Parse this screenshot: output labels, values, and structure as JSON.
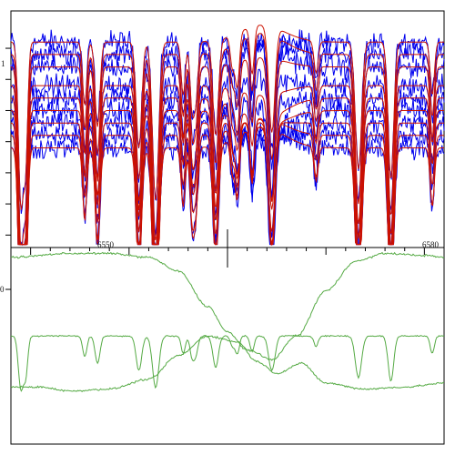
{
  "chart_data": [
    {
      "type": "line",
      "title": "",
      "xlabel": "",
      "ylabel": "",
      "xlim": [
        6538,
        6582
      ],
      "ylim": [
        0.78,
        1.16
      ],
      "grid": false,
      "legend": "none",
      "y_tick_labels": [
        "1"
      ],
      "y_ticks": [
        0.8,
        0.85,
        0.9,
        0.95,
        1.0,
        1.05,
        1.1
      ],
      "series_groups": [
        {
          "name": "",
          "color": "#0000ee",
          "count": 9,
          "noise": 0.022
        },
        {
          "name": "",
          "color": "#cc1100",
          "count": 9,
          "noise": 0.0
        }
      ],
      "base_levels": [
        1.11,
        1.09,
        1.07,
        1.04,
        1.02,
        1.0,
        0.98,
        0.96,
        0.94
      ],
      "absorption_lines": [
        {
          "x": 6539.0,
          "depth": 0.3,
          "width": 0.35
        },
        {
          "x": 6539.5,
          "depth": 0.22,
          "width": 0.3
        },
        {
          "x": 6545.5,
          "depth": 0.12,
          "width": 0.3
        },
        {
          "x": 6546.8,
          "depth": 0.16,
          "width": 0.35
        },
        {
          "x": 6551.0,
          "depth": 0.2,
          "width": 0.4
        },
        {
          "x": 6552.7,
          "depth": 0.3,
          "width": 0.45
        },
        {
          "x": 6555.5,
          "depth": 0.1,
          "width": 0.3
        },
        {
          "x": 6556.4,
          "depth": 0.12,
          "width": 0.3
        },
        {
          "x": 6556.8,
          "depth": 0.1,
          "width": 0.3
        },
        {
          "x": 6558.8,
          "depth": 0.18,
          "width": 0.4
        },
        {
          "x": 6560.5,
          "depth": 0.06,
          "width": 0.3
        },
        {
          "x": 6561.0,
          "depth": 0.1,
          "width": 0.3
        },
        {
          "x": 6562.5,
          "depth": 0.09,
          "width": 0.3
        },
        {
          "x": 6564.5,
          "depth": 0.2,
          "width": 0.45
        },
        {
          "x": 6569.0,
          "depth": 0.06,
          "width": 0.3
        },
        {
          "x": 6573.3,
          "depth": 0.24,
          "width": 0.45
        },
        {
          "x": 6576.6,
          "depth": 0.26,
          "width": 0.4
        },
        {
          "x": 6580.8,
          "depth": 0.1,
          "width": 0.3
        }
      ]
    },
    {
      "type": "line",
      "title": "",
      "xlabel": "",
      "ylabel": "",
      "xlim": [
        6538,
        6582
      ],
      "ylim": [
        0.0,
        1.0
      ],
      "grid": false,
      "legend": "none",
      "x_ticks": [
        6550,
        6580
      ],
      "x_tick_labels": [
        "6550",
        "6580"
      ],
      "y_tick_labels": [
        "0"
      ],
      "series": [
        {
          "name": "",
          "color": "#55aa44",
          "points": [
            [
              6538,
              0.95
            ],
            [
              6544,
              0.97
            ],
            [
              6548,
              0.97
            ],
            [
              6552,
              0.95
            ],
            [
              6555,
              0.88
            ],
            [
              6558,
              0.7
            ],
            [
              6560,
              0.57
            ],
            [
              6562,
              0.48
            ],
            [
              6564.5,
              0.43
            ],
            [
              6567,
              0.55
            ],
            [
              6570,
              0.78
            ],
            [
              6573,
              0.93
            ],
            [
              6576,
              0.97
            ],
            [
              6580,
              0.96
            ],
            [
              6582,
              0.95
            ]
          ]
        },
        {
          "name": "",
          "color": "#55aa44",
          "points": [
            [
              6538,
              0.29
            ],
            [
              6541,
              0.29
            ],
            [
              6544,
              0.27
            ],
            [
              6548,
              0.28
            ],
            [
              6552,
              0.33
            ],
            [
              6555,
              0.45
            ],
            [
              6558,
              0.55
            ],
            [
              6561,
              0.52
            ],
            [
              6563,
              0.42
            ],
            [
              6565,
              0.36
            ],
            [
              6567.5,
              0.41
            ],
            [
              6570,
              0.31
            ],
            [
              6574,
              0.28
            ],
            [
              6578,
              0.29
            ],
            [
              6582,
              0.31
            ]
          ]
        },
        {
          "name": "",
          "color": "#55aa44",
          "points": [
            [
              6538,
              0.12
            ]
          ],
          "flat_with_lines": true,
          "level": 0.12
        }
      ]
    }
  ]
}
